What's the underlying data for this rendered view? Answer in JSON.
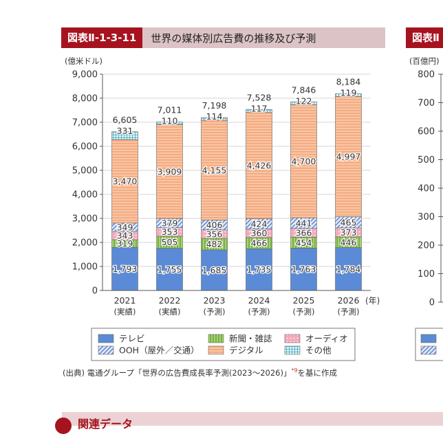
{
  "header": {
    "badge": "図表Ⅱ-1-3-11",
    "title": "世界の媒体別広告費の推移及び予測"
  },
  "side_header": {
    "badge": "図表Ⅱ"
  },
  "chart_data": {
    "type": "bar",
    "stacked": true,
    "ylabel": "(億米ドル)",
    "ylim": [
      0,
      9000
    ],
    "yticks": [
      "0",
      "1,000",
      "2,000",
      "3,000",
      "4,000",
      "5,000",
      "6,000",
      "7,000",
      "8,000",
      "9,000"
    ],
    "x_unit": "(年)",
    "categories": [
      "2021",
      "2022",
      "2023",
      "2024",
      "2025",
      "2026"
    ],
    "category_notes": [
      "(実績)",
      "(実績)",
      "(予測)",
      "(予測)",
      "(予測)",
      "(予測)"
    ],
    "totals": [
      "6,605",
      "7,011",
      "7,198",
      "7,528",
      "7,846",
      "8,184"
    ],
    "series": [
      {
        "name": "テレビ",
        "color": "#5b8bd6",
        "pattern": "solid",
        "values": [
          1793,
          1755,
          1685,
          1735,
          1763,
          1784
        ],
        "labels": [
          "1,793",
          "1,755",
          "1,685",
          "1,735",
          "1,763",
          "1,784"
        ]
      },
      {
        "name": "新聞・雑誌",
        "color": "#a6d46c",
        "pattern": "vertical",
        "values": [
          319,
          505,
          482,
          466,
          454,
          446
        ],
        "labels": [
          "319",
          "505",
          "482",
          "466",
          "454",
          "446"
        ]
      },
      {
        "name": "オーディオ",
        "color": "#f3a9bb",
        "pattern": "dots",
        "values": [
          343,
          353,
          356,
          360,
          366,
          373
        ],
        "labels": [
          "343",
          "353",
          "356",
          "360",
          "366",
          "373"
        ]
      },
      {
        "name": "OOH (屋外/交通)",
        "color": "#9db3e3",
        "pattern": "diagonal",
        "values": [
          349,
          379,
          406,
          424,
          441,
          465
        ],
        "labels": [
          "349",
          "379",
          "406",
          "424",
          "441",
          "465"
        ]
      },
      {
        "name": "デジタル",
        "color": "#f5ab7f",
        "pattern": "horizontal",
        "values": [
          3470,
          3909,
          4155,
          4426,
          4700,
          4997
        ],
        "labels": [
          "3,470",
          "3,909",
          "4,155",
          "4,426",
          "4,700",
          "4,997"
        ]
      },
      {
        "name": "その他",
        "color": "#7fd0e0",
        "pattern": "grid",
        "values": [
          331,
          110,
          114,
          117,
          122,
          119
        ],
        "labels": [
          "331",
          "110",
          "114",
          "117",
          "122",
          "119"
        ]
      }
    ],
    "legend": [
      {
        "name": "テレビ",
        "series": 0
      },
      {
        "name": "新聞・雑誌",
        "series": 1
      },
      {
        "name": "オーディオ",
        "series": 2
      },
      {
        "name": "OOH（屋外／交通）",
        "series": 3
      },
      {
        "name": "デジタル",
        "series": 4
      },
      {
        "name": "その他",
        "series": 5
      }
    ],
    "side_chart": {
      "ylabel": "(百億円)",
      "yticks": [
        "0",
        "100",
        "200",
        "300",
        "400",
        "500",
        "600",
        "700",
        "800"
      ]
    }
  },
  "source": {
    "text": "(出典) 電通グループ「世界の広告費成長率予測(2023～2026)」",
    "sup": "*9",
    "suffix": "を基に作成"
  },
  "related": {
    "title": "関連データ"
  }
}
